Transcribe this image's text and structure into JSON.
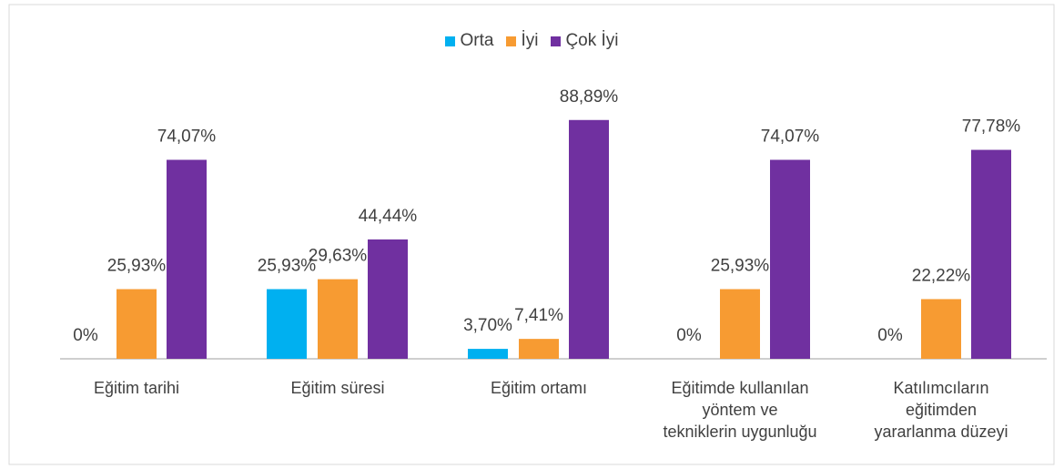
{
  "chart_data": {
    "type": "bar",
    "categories": [
      "Eğitim tarihi",
      "Eğitim süresi",
      "Eğitim ortamı",
      "Eğitimde kullanılan\nyöntem ve\ntekniklerin uygunluğu",
      "Katılımcıların\neğitimden\nyararlanma düzeyi"
    ],
    "series": [
      {
        "name": "Orta",
        "color": "#00b0f0",
        "values": [
          0,
          25.93,
          3.7,
          0,
          0
        ],
        "value_labels": [
          "0%",
          "25,93%",
          "3,70%",
          "0%",
          "0%"
        ]
      },
      {
        "name": "İyi",
        "color": "#f79b32",
        "values": [
          25.93,
          29.63,
          7.41,
          25.93,
          22.22
        ],
        "value_labels": [
          "25,93%",
          "29,63%",
          "7,41%",
          "25,93%",
          "22,22%"
        ]
      },
      {
        "name": "Çok İyi",
        "color": "#7030a0",
        "values": [
          74.07,
          44.44,
          88.89,
          74.07,
          77.78
        ],
        "value_labels": [
          "74,07%",
          "44,44%",
          "88,89%",
          "74,07%",
          "77,78%"
        ]
      }
    ],
    "legend": "top"
  }
}
